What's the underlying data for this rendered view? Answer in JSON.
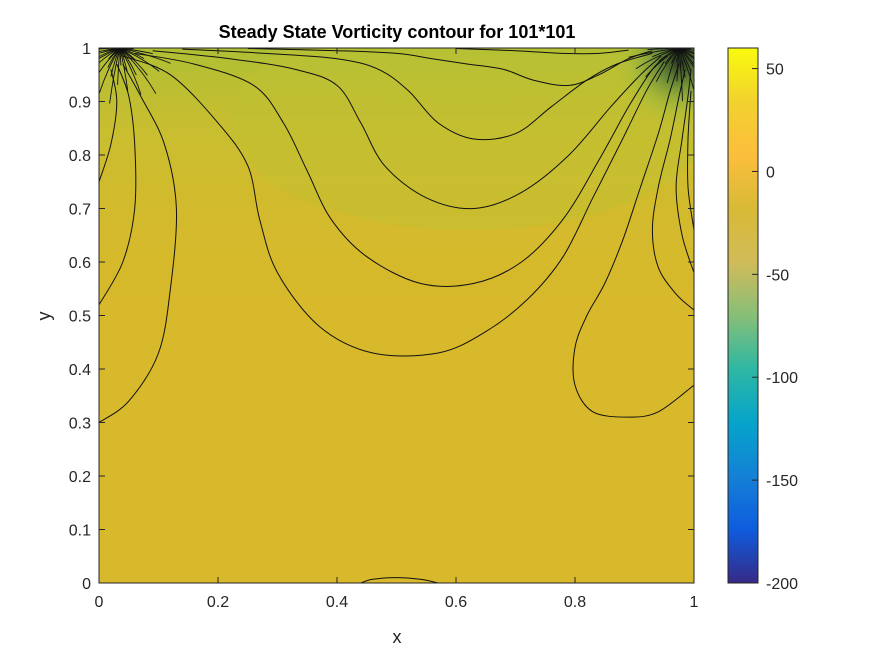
{
  "chart_data": {
    "type": "contour",
    "title": "Steady State Vorticity contour for 101*101",
    "xlabel": "x",
    "ylabel": "y",
    "xlim": [
      0,
      1
    ],
    "ylim": [
      0,
      1
    ],
    "x_ticks": [
      "0",
      "0.2",
      "0.4",
      "0.6",
      "0.8",
      "1"
    ],
    "x_tick_values": [
      0,
      0.2,
      0.4,
      0.6,
      0.8,
      1
    ],
    "y_ticks": [
      "0",
      "0.1",
      "0.2",
      "0.3",
      "0.4",
      "0.5",
      "0.6",
      "0.7",
      "0.8",
      "0.9",
      "1"
    ],
    "y_tick_values": [
      0,
      0.1,
      0.2,
      0.3,
      0.4,
      0.5,
      0.6,
      0.7,
      0.8,
      0.9,
      1
    ],
    "colorbar": {
      "limits": [
        -200,
        60
      ],
      "ticks": [
        "50",
        "0",
        "-50",
        "-100",
        "-150",
        "-200"
      ],
      "tick_values": [
        50,
        0,
        -50,
        -100,
        -150,
        -200
      ],
      "colormap": "parula"
    },
    "grid": false,
    "contour_lines": [
      [
        [
          0,
          0.3
        ],
        [
          0.05,
          0.34
        ],
        [
          0.1,
          0.43
        ],
        [
          0.12,
          0.55
        ],
        [
          0.13,
          0.7
        ],
        [
          0.11,
          0.82
        ],
        [
          0.07,
          0.91
        ],
        [
          0.04,
          0.97
        ]
      ],
      [
        [
          0,
          0.52
        ],
        [
          0.04,
          0.6
        ],
        [
          0.06,
          0.7
        ],
        [
          0.06,
          0.82
        ],
        [
          0.05,
          0.91
        ],
        [
          0.03,
          0.97
        ]
      ],
      [
        [
          0,
          0.75
        ],
        [
          0.02,
          0.82
        ],
        [
          0.03,
          0.9
        ],
        [
          0.02,
          0.96
        ]
      ],
      [
        [
          0.04,
          0.985
        ],
        [
          0.12,
          0.95
        ],
        [
          0.2,
          0.86
        ],
        [
          0.25,
          0.78
        ],
        [
          0.27,
          0.68
        ],
        [
          0.3,
          0.58
        ],
        [
          0.37,
          0.48
        ],
        [
          0.46,
          0.43
        ],
        [
          0.57,
          0.43
        ],
        [
          0.65,
          0.47
        ],
        [
          0.72,
          0.53
        ],
        [
          0.78,
          0.61
        ],
        [
          0.83,
          0.72
        ],
        [
          0.88,
          0.83
        ],
        [
          0.92,
          0.92
        ],
        [
          0.95,
          0.975
        ]
      ],
      [
        [
          0.06,
          0.99
        ],
        [
          0.16,
          0.97
        ],
        [
          0.26,
          0.93
        ],
        [
          0.31,
          0.86
        ],
        [
          0.35,
          0.77
        ],
        [
          0.39,
          0.68
        ],
        [
          0.45,
          0.61
        ],
        [
          0.54,
          0.56
        ],
        [
          0.63,
          0.56
        ],
        [
          0.71,
          0.6
        ],
        [
          0.78,
          0.68
        ],
        [
          0.84,
          0.79
        ],
        [
          0.89,
          0.89
        ],
        [
          0.93,
          0.96
        ],
        [
          0.955,
          0.985
        ]
      ],
      [
        [
          0.09,
          0.995
        ],
        [
          0.22,
          0.98
        ],
        [
          0.33,
          0.96
        ],
        [
          0.4,
          0.93
        ],
        [
          0.44,
          0.86
        ],
        [
          0.48,
          0.78
        ],
        [
          0.55,
          0.72
        ],
        [
          0.63,
          0.7
        ],
        [
          0.71,
          0.73
        ],
        [
          0.79,
          0.8
        ],
        [
          0.86,
          0.89
        ],
        [
          0.91,
          0.95
        ],
        [
          0.945,
          0.985
        ]
      ],
      [
        [
          0.14,
          0.998
        ],
        [
          0.28,
          0.99
        ],
        [
          0.4,
          0.98
        ],
        [
          0.47,
          0.96
        ],
        [
          0.52,
          0.92
        ],
        [
          0.57,
          0.86
        ],
        [
          0.63,
          0.83
        ],
        [
          0.7,
          0.84
        ],
        [
          0.76,
          0.89
        ],
        [
          0.82,
          0.94
        ],
        [
          0.87,
          0.97
        ],
        [
          0.93,
          0.99
        ]
      ],
      [
        [
          0.25,
          0.999
        ],
        [
          0.4,
          0.995
        ],
        [
          0.5,
          0.99
        ],
        [
          0.56,
          0.98
        ],
        [
          0.62,
          0.97
        ],
        [
          0.68,
          0.96
        ],
        [
          0.73,
          0.94
        ],
        [
          0.79,
          0.93
        ],
        [
          0.84,
          0.95
        ],
        [
          0.89,
          0.98
        ],
        [
          0.93,
          0.995
        ]
      ],
      [
        [
          0.6,
          0.999
        ],
        [
          0.7,
          0.995
        ],
        [
          0.78,
          0.99
        ],
        [
          0.84,
          0.99
        ],
        [
          0.89,
          0.996
        ]
      ],
      [
        [
          1,
          0.37
        ],
        [
          0.94,
          0.32
        ],
        [
          0.89,
          0.31
        ],
        [
          0.83,
          0.32
        ],
        [
          0.8,
          0.37
        ],
        [
          0.8,
          0.44
        ],
        [
          0.82,
          0.5
        ],
        [
          0.85,
          0.56
        ],
        [
          0.88,
          0.64
        ],
        [
          0.91,
          0.74
        ],
        [
          0.94,
          0.84
        ],
        [
          0.96,
          0.92
        ],
        [
          0.975,
          0.97
        ]
      ],
      [
        [
          1,
          0.51
        ],
        [
          0.97,
          0.54
        ],
        [
          0.94,
          0.59
        ],
        [
          0.93,
          0.66
        ],
        [
          0.94,
          0.74
        ],
        [
          0.96,
          0.83
        ],
        [
          0.975,
          0.91
        ],
        [
          0.985,
          0.96
        ]
      ],
      [
        [
          1,
          0.58
        ],
        [
          0.98,
          0.65
        ],
        [
          0.97,
          0.74
        ],
        [
          0.98,
          0.83
        ],
        [
          0.99,
          0.91
        ],
        [
          0.995,
          0.96
        ]
      ],
      [
        [
          1,
          0.66
        ],
        [
          0.99,
          0.74
        ],
        [
          0.99,
          0.83
        ],
        [
          0.995,
          0.92
        ]
      ],
      [
        [
          0.44,
          0
        ],
        [
          0.46,
          0.007
        ],
        [
          0.5,
          0.01
        ],
        [
          0.54,
          0.007
        ],
        [
          0.57,
          0
        ]
      ]
    ]
  }
}
